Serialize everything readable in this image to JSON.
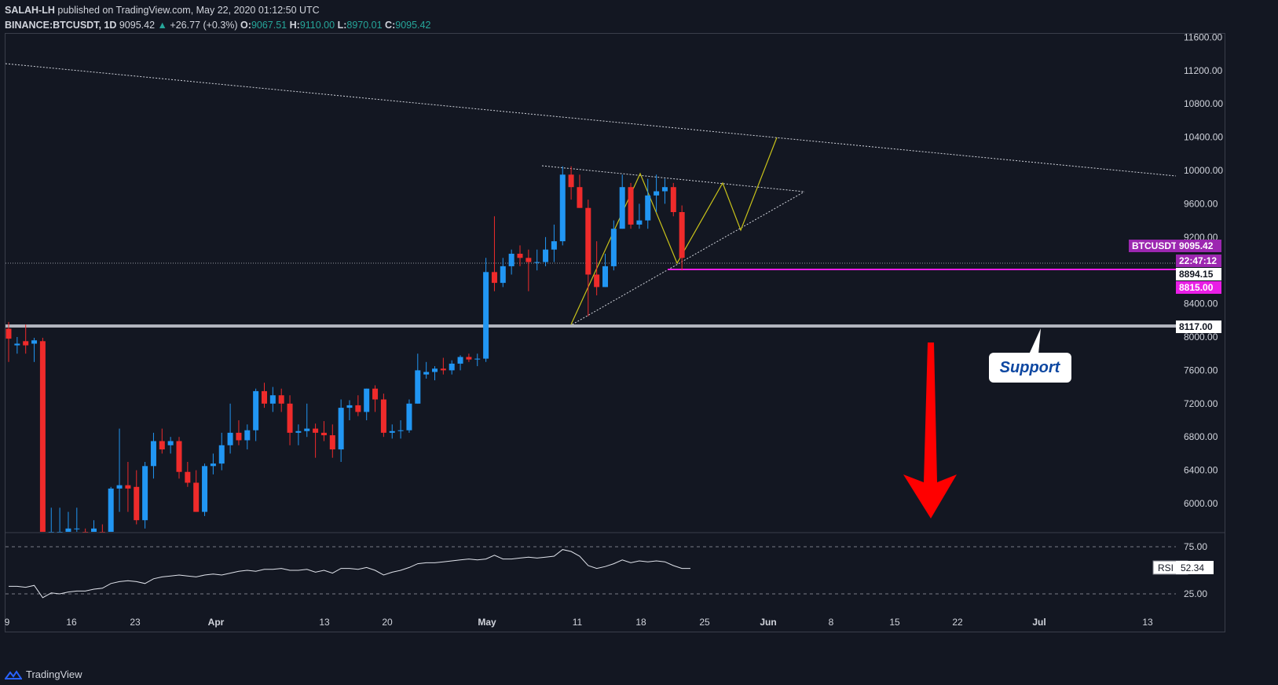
{
  "header": {
    "author": "SALAH-LH",
    "published_text": "published on TradingView.com, May 22, 2020 01:12:50 UTC",
    "symbol": "BINANCE:BTCUSDT, 1D",
    "last": "9095.42",
    "change": "+26.77 (+0.3%)",
    "open_label": "O:",
    "open": "9067.51",
    "high_label": "H:",
    "high": "9110.00",
    "low_label": "L:",
    "low": "8970.01",
    "close_label": "C:",
    "close": "9095.42"
  },
  "footer": {
    "brand": "TradingView"
  },
  "colors": {
    "background": "#131722",
    "up": "#2196f3",
    "down": "#ef2b2b",
    "trend_yellow": "#c8c21a",
    "magenta": "#e040fb",
    "support_line": "#b2b5be",
    "label_purple": "#9c27b0",
    "arrow_red": "#ff0000"
  },
  "chart_data": {
    "type": "candlestick",
    "price_axis": {
      "ticks": [
        "11600.00",
        "11200.00",
        "10800.00",
        "10400.00",
        "10000.00",
        "9600.00",
        "9200.00",
        "8400.00",
        "8000.00",
        "7600.00",
        "7200.00",
        "6800.00",
        "6400.00",
        "6000.00"
      ],
      "ylim": [
        5650,
        11600
      ]
    },
    "time_axis": {
      "ticks": [
        "9",
        "16",
        "23",
        "Apr",
        "13",
        "20",
        "May",
        "11",
        "18",
        "25",
        "Jun",
        "8",
        "15",
        "22",
        "Jul",
        "13"
      ]
    },
    "candles": [
      {
        "o": 8100,
        "h": 8180,
        "l": 7700,
        "c": 7980
      },
      {
        "o": 7900,
        "h": 8000,
        "l": 7800,
        "c": 7920
      },
      {
        "o": 7950,
        "h": 8150,
        "l": 7800,
        "c": 7900
      },
      {
        "o": 7920,
        "h": 7990,
        "l": 7700,
        "c": 7960
      },
      {
        "o": 7950,
        "h": 7990,
        "l": 5500,
        "c": 5500
      },
      {
        "o": 5500,
        "h": 5950,
        "l": 5500,
        "c": 5650
      },
      {
        "o": 5600,
        "h": 5950,
        "l": 5500,
        "c": 5600
      },
      {
        "o": 5550,
        "h": 5900,
        "l": 5500,
        "c": 5700
      },
      {
        "o": 5700,
        "h": 5950,
        "l": 5600,
        "c": 5700
      },
      {
        "o": 5650,
        "h": 5700,
        "l": 5500,
        "c": 5600
      },
      {
        "o": 5600,
        "h": 5800,
        "l": 5500,
        "c": 5700
      },
      {
        "o": 5650,
        "h": 5750,
        "l": 5500,
        "c": 5600
      },
      {
        "o": 5600,
        "h": 6200,
        "l": 5500,
        "c": 6180
      },
      {
        "o": 6180,
        "h": 6900,
        "l": 5900,
        "c": 6220
      },
      {
        "o": 6220,
        "h": 6500,
        "l": 5900,
        "c": 6180
      },
      {
        "o": 6200,
        "h": 6400,
        "l": 5750,
        "c": 5800
      },
      {
        "o": 5800,
        "h": 6500,
        "l": 5700,
        "c": 6450
      },
      {
        "o": 6450,
        "h": 6850,
        "l": 6300,
        "c": 6750
      },
      {
        "o": 6750,
        "h": 6900,
        "l": 6600,
        "c": 6650
      },
      {
        "o": 6700,
        "h": 6800,
        "l": 6600,
        "c": 6750
      },
      {
        "o": 6750,
        "h": 6800,
        "l": 6300,
        "c": 6380
      },
      {
        "o": 6380,
        "h": 6500,
        "l": 6200,
        "c": 6250
      },
      {
        "o": 6250,
        "h": 6400,
        "l": 5900,
        "c": 5900
      },
      {
        "o": 5900,
        "h": 6480,
        "l": 5850,
        "c": 6450
      },
      {
        "o": 6450,
        "h": 6600,
        "l": 6350,
        "c": 6480
      },
      {
        "o": 6480,
        "h": 6850,
        "l": 6400,
        "c": 6700
      },
      {
        "o": 6700,
        "h": 7200,
        "l": 6600,
        "c": 6850
      },
      {
        "o": 6850,
        "h": 7000,
        "l": 6700,
        "c": 6760
      },
      {
        "o": 6760,
        "h": 6950,
        "l": 6650,
        "c": 6880
      },
      {
        "o": 6880,
        "h": 7380,
        "l": 6750,
        "c": 7350
      },
      {
        "o": 7350,
        "h": 7450,
        "l": 7150,
        "c": 7200
      },
      {
        "o": 7200,
        "h": 7400,
        "l": 7100,
        "c": 7300
      },
      {
        "o": 7300,
        "h": 7380,
        "l": 7100,
        "c": 7200
      },
      {
        "o": 7200,
        "h": 7300,
        "l": 6700,
        "c": 6850
      },
      {
        "o": 6850,
        "h": 6950,
        "l": 6700,
        "c": 6870
      },
      {
        "o": 6870,
        "h": 7200,
        "l": 6800,
        "c": 6900
      },
      {
        "o": 6900,
        "h": 6960,
        "l": 6550,
        "c": 6850
      },
      {
        "o": 6850,
        "h": 6990,
        "l": 6750,
        "c": 6820
      },
      {
        "o": 6820,
        "h": 6950,
        "l": 6550,
        "c": 6650
      },
      {
        "o": 6650,
        "h": 7250,
        "l": 6500,
        "c": 7150
      },
      {
        "o": 7150,
        "h": 7240,
        "l": 7000,
        "c": 7180
      },
      {
        "o": 7180,
        "h": 7300,
        "l": 7050,
        "c": 7100
      },
      {
        "o": 7100,
        "h": 7380,
        "l": 7000,
        "c": 7380
      },
      {
        "o": 7380,
        "h": 7420,
        "l": 7100,
        "c": 7250
      },
      {
        "o": 7250,
        "h": 7320,
        "l": 6800,
        "c": 6850
      },
      {
        "o": 6850,
        "h": 6950,
        "l": 6780,
        "c": 6870
      },
      {
        "o": 6870,
        "h": 7000,
        "l": 6780,
        "c": 6880
      },
      {
        "o": 6880,
        "h": 7250,
        "l": 6850,
        "c": 7200
      },
      {
        "o": 7200,
        "h": 7800,
        "l": 7200,
        "c": 7600
      },
      {
        "o": 7550,
        "h": 7700,
        "l": 7500,
        "c": 7580
      },
      {
        "o": 7580,
        "h": 7650,
        "l": 7480,
        "c": 7620
      },
      {
        "o": 7620,
        "h": 7750,
        "l": 7550,
        "c": 7600
      },
      {
        "o": 7600,
        "h": 7720,
        "l": 7550,
        "c": 7680
      },
      {
        "o": 7680,
        "h": 7780,
        "l": 7600,
        "c": 7760
      },
      {
        "o": 7760,
        "h": 7800,
        "l": 7700,
        "c": 7730
      },
      {
        "o": 7730,
        "h": 7800,
        "l": 7650,
        "c": 7740
      },
      {
        "o": 7740,
        "h": 8950,
        "l": 7700,
        "c": 8780
      },
      {
        "o": 8780,
        "h": 9450,
        "l": 8550,
        "c": 8650
      },
      {
        "o": 8650,
        "h": 8950,
        "l": 8600,
        "c": 8850
      },
      {
        "o": 8850,
        "h": 9050,
        "l": 8750,
        "c": 9000
      },
      {
        "o": 9000,
        "h": 9100,
        "l": 8850,
        "c": 8950
      },
      {
        "o": 8950,
        "h": 9050,
        "l": 8550,
        "c": 8900
      },
      {
        "o": 8900,
        "h": 9050,
        "l": 8800,
        "c": 8900
      },
      {
        "o": 8900,
        "h": 9200,
        "l": 8850,
        "c": 9050
      },
      {
        "o": 9050,
        "h": 9350,
        "l": 8900,
        "c": 9150
      },
      {
        "o": 9150,
        "h": 10050,
        "l": 9100,
        "c": 9950
      },
      {
        "o": 9950,
        "h": 10050,
        "l": 9650,
        "c": 9800
      },
      {
        "o": 9800,
        "h": 9950,
        "l": 9550,
        "c": 9550
      },
      {
        "o": 9550,
        "h": 9650,
        "l": 8250,
        "c": 8750
      },
      {
        "o": 8750,
        "h": 9150,
        "l": 8500,
        "c": 8600
      },
      {
        "o": 8600,
        "h": 9000,
        "l": 8600,
        "c": 8850
      },
      {
        "o": 8850,
        "h": 9400,
        "l": 8800,
        "c": 9300
      },
      {
        "o": 9300,
        "h": 9950,
        "l": 9300,
        "c": 9800
      },
      {
        "o": 9800,
        "h": 9850,
        "l": 9300,
        "c": 9350
      },
      {
        "o": 9350,
        "h": 9600,
        "l": 9300,
        "c": 9400
      },
      {
        "o": 9400,
        "h": 9900,
        "l": 9300,
        "c": 9700
      },
      {
        "o": 9700,
        "h": 9950,
        "l": 9500,
        "c": 9750
      },
      {
        "o": 9750,
        "h": 9900,
        "l": 9600,
        "c": 9800
      },
      {
        "o": 9800,
        "h": 9850,
        "l": 9450,
        "c": 9500
      },
      {
        "o": 9500,
        "h": 9580,
        "l": 8800,
        "c": 8950
      },
      {
        "o": 9067.51,
        "h": 9110,
        "l": 8970.01,
        "c": 9095.42
      }
    ],
    "labels": {
      "symbol_tag": "BTCUSDT",
      "price": "9095.42",
      "countdown": "22:47:12",
      "level_white": "8894.15",
      "level_magenta": "8815.00",
      "support_level": "8117.00",
      "support_text": "Support"
    },
    "rsi": {
      "name": "RSI",
      "value": "52.34",
      "upper": "75.00",
      "lower": "25.00",
      "values": [
        33,
        33,
        32,
        34,
        21,
        26,
        25,
        27,
        28,
        28,
        30,
        31,
        36,
        38,
        39,
        38,
        36,
        41,
        43,
        44,
        45,
        44,
        43,
        45,
        46,
        45,
        47,
        49,
        50,
        49,
        51,
        51,
        52,
        50,
        50,
        51,
        48,
        50,
        47,
        52,
        52,
        51,
        53,
        50,
        45,
        48,
        50,
        53,
        57,
        58,
        58,
        59,
        60,
        61,
        62,
        61,
        62,
        66,
        62,
        62,
        63,
        64,
        63,
        64,
        65,
        72,
        70,
        65,
        55,
        52,
        54,
        57,
        61,
        58,
        60,
        59,
        60,
        59,
        55,
        52,
        52
      ]
    }
  }
}
